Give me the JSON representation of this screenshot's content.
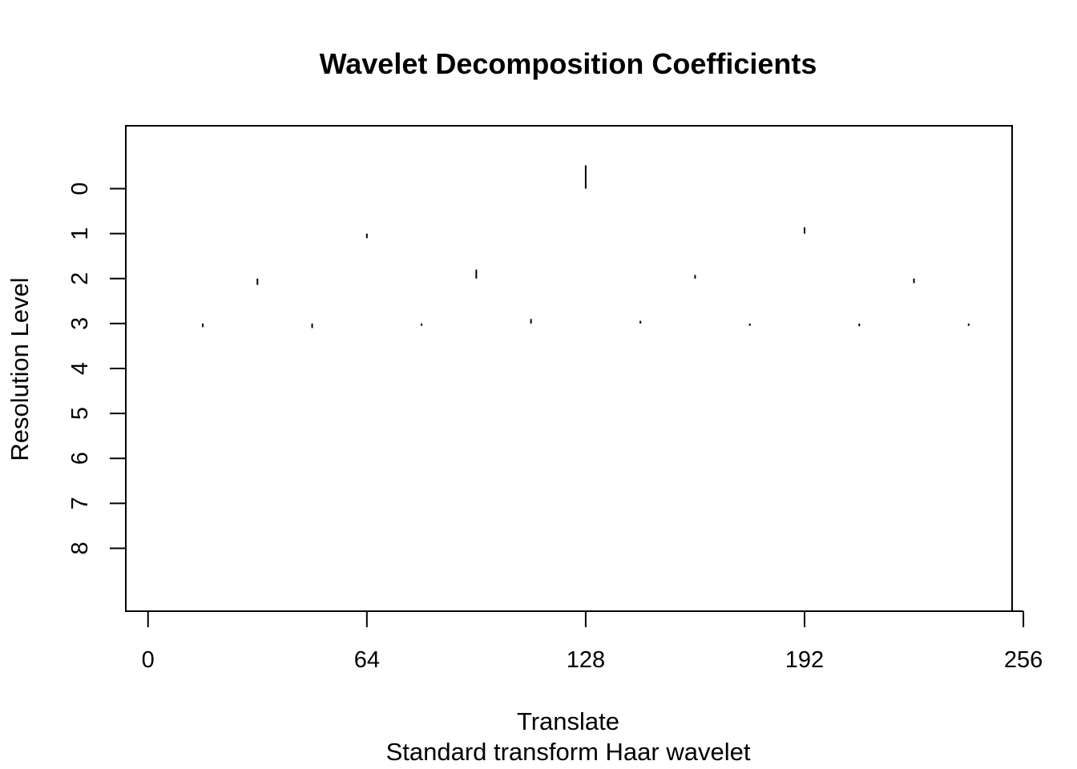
{
  "chart_data": {
    "type": "scatter",
    "title": "Wavelet Decomposition Coefficients",
    "xlabel": "Translate",
    "subtitle": "Standard transform Haar wavelet",
    "ylabel": "Resolution Level",
    "xlim": [
      -6.5,
      252.7
    ],
    "ylim_levels": [
      -1.4,
      9.4
    ],
    "y_reversed": true,
    "x_ticks": [
      0,
      64,
      128,
      192,
      256
    ],
    "y_ticks": [
      0,
      1,
      2,
      3,
      4,
      5,
      6,
      7,
      8
    ],
    "grid": false,
    "legend": "none",
    "coefficients": [
      {
        "level": 0,
        "x": 128,
        "value": 0.52
      },
      {
        "level": 1,
        "x": 64,
        "value": -0.1
      },
      {
        "level": 1,
        "x": 192,
        "value": 0.14
      },
      {
        "level": 2,
        "x": 32,
        "value": -0.14
      },
      {
        "level": 2,
        "x": 96,
        "value": 0.2
      },
      {
        "level": 2,
        "x": 160,
        "value": 0.08
      },
      {
        "level": 2,
        "x": 224,
        "value": -0.1
      },
      {
        "level": 3,
        "x": 16,
        "value": -0.08
      },
      {
        "level": 3,
        "x": 48,
        "value": -0.1
      },
      {
        "level": 3,
        "x": 80,
        "value": -0.05
      },
      {
        "level": 3,
        "x": 112,
        "value": 0.1
      },
      {
        "level": 3,
        "x": 144,
        "value": 0.06
      },
      {
        "level": 3,
        "x": 176,
        "value": -0.05
      },
      {
        "level": 3,
        "x": 208,
        "value": -0.06
      },
      {
        "level": 3,
        "x": 240,
        "value": -0.05
      }
    ]
  }
}
